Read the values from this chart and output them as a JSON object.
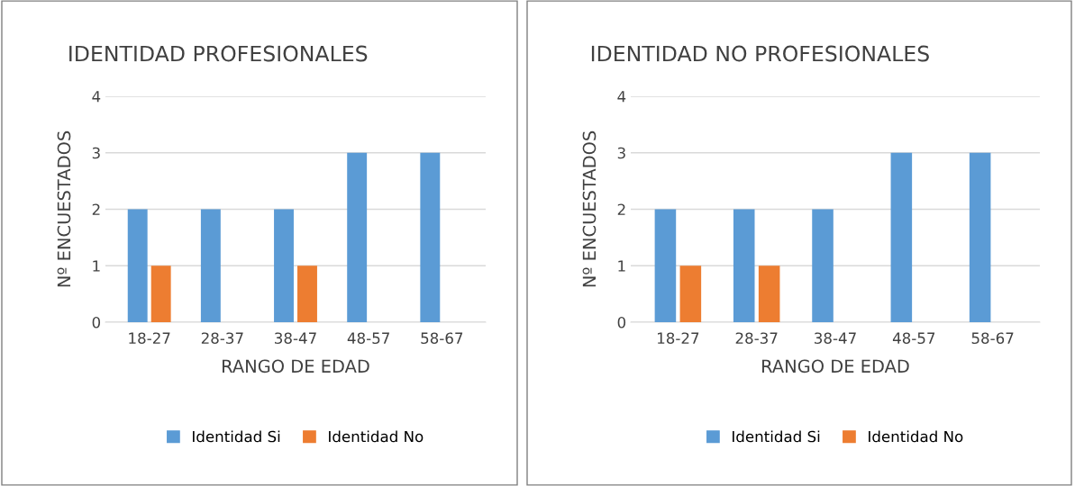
{
  "chart_data": [
    {
      "type": "bar",
      "title": "IDENTIDAD PROFESIONALES",
      "xlabel": "RANGO DE EDAD",
      "ylabel": "Nº ENCUESTADOS",
      "categories": [
        "18-27",
        "28-37",
        "38-47",
        "48-57",
        "58-67"
      ],
      "series": [
        {
          "name": "Identidad Si",
          "color": "#5b9bd5",
          "values": [
            2,
            2,
            2,
            3,
            3
          ]
        },
        {
          "name": "Identidad No",
          "color": "#ed7d31",
          "values": [
            1,
            0,
            1,
            0,
            0
          ]
        }
      ],
      "ylim": [
        0,
        4
      ],
      "yticks": [
        0,
        1,
        2,
        3,
        4
      ],
      "grid": "y",
      "legend": "bottom"
    },
    {
      "type": "bar",
      "title": "IDENTIDAD NO PROFESIONALES",
      "xlabel": "RANGO DE EDAD",
      "ylabel": "Nº ENCUESTADOS",
      "categories": [
        "18-27",
        "28-37",
        "38-47",
        "48-57",
        "58-67"
      ],
      "series": [
        {
          "name": "Identidad Si",
          "color": "#5b9bd5",
          "values": [
            2,
            2,
            2,
            3,
            3
          ]
        },
        {
          "name": "Identidad No",
          "color": "#ed7d31",
          "values": [
            1,
            1,
            0,
            0,
            0
          ]
        }
      ],
      "ylim": [
        0,
        4
      ],
      "yticks": [
        0,
        1,
        2,
        3,
        4
      ],
      "grid": "y",
      "legend": "bottom"
    }
  ]
}
